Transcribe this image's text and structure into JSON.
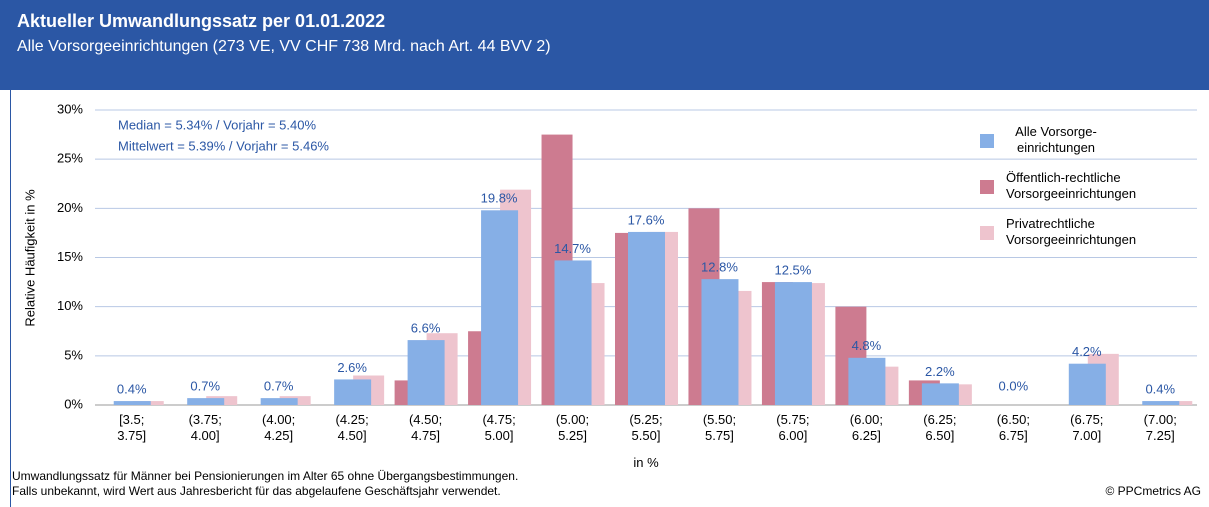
{
  "chart_data": {
    "type": "bar",
    "title": "Aktueller Umwandlungssatz per 01.01.2022",
    "subtitle": "Alle Vorsorgeeinrichtungen (273 VE, VV CHF 738 Mrd. nach Art. 44 BVV 2)",
    "annotations": [
      "Median = 5.34% / Vorjahr = 5.40%",
      "Mittelwert = 5.39% / Vorjahr = 5.46%"
    ],
    "x_label": "in %",
    "y_label": "Relative Häufigkeit in %",
    "footnotes": [
      "Umwandlungssatz für Männer bei Pensionierungen im Alter 65 ohne Übergangsbestimmungen.",
      "Falls unbekannt, wird Wert aus Jahresbericht für das abgelaufene Geschäftsjahr verwendet."
    ],
    "copyright": "© PPCmetrics AG",
    "categories": [
      "[3.5; 3.75]",
      "(3.75; 4.00]",
      "(4.00; 4.25]",
      "(4.25; 4.50]",
      "(4.50; 4.75]",
      "(4.75; 5.00]",
      "(5.00; 5.25]",
      "(5.25; 5.50]",
      "(5.50; 5.75]",
      "(5.75; 6.00]",
      "(6.00; 6.25]",
      "(6.25; 6.50]",
      "(6.50; 6.75]",
      "(6.75; 7.00]",
      "(7.00; 7.25]"
    ],
    "series": [
      {
        "name": "Alle Vorsorge-einrichtungen",
        "color": "#86afe6",
        "values": [
          0.4,
          0.7,
          0.7,
          2.6,
          6.6,
          19.8,
          14.7,
          17.6,
          12.8,
          12.5,
          4.8,
          2.2,
          0.0,
          4.2,
          0.4
        ],
        "value_labels": [
          "0.4%",
          "0.7%",
          "0.7%",
          "2.6%",
          "6.6%",
          "19.8%",
          "14.7%",
          "17.6%",
          "12.8%",
          "12.5%",
          "4.8%",
          "2.2%",
          "0.0%",
          "4.2%",
          "0.4%"
        ]
      },
      {
        "name": "Öffentlich-rechtliche Vorsorgeeinrichtungen",
        "color": "#cd7b90",
        "values": [
          0,
          0,
          0,
          0,
          2.5,
          7.5,
          27.5,
          17.5,
          20.0,
          12.5,
          10.0,
          2.5,
          0,
          0,
          0
        ]
      },
      {
        "name": "Privatrechtliche Vorsorgeeinrichtungen",
        "color": "#eec4ce",
        "values": [
          0.4,
          0.9,
          0.9,
          3.0,
          7.3,
          21.9,
          12.4,
          17.6,
          11.6,
          12.4,
          3.9,
          2.1,
          0,
          5.2,
          0.4
        ]
      }
    ],
    "ylim": [
      0,
      30
    ],
    "yticks": [
      {
        "value": 0,
        "label": "0%"
      },
      {
        "value": 5,
        "label": "5%"
      },
      {
        "value": 10,
        "label": "10%"
      },
      {
        "value": 15,
        "label": "15%"
      },
      {
        "value": 20,
        "label": "20%"
      },
      {
        "value": 25,
        "label": "25%"
      },
      {
        "value": 30,
        "label": "30%"
      }
    ],
    "grid": true,
    "legend": "right"
  }
}
